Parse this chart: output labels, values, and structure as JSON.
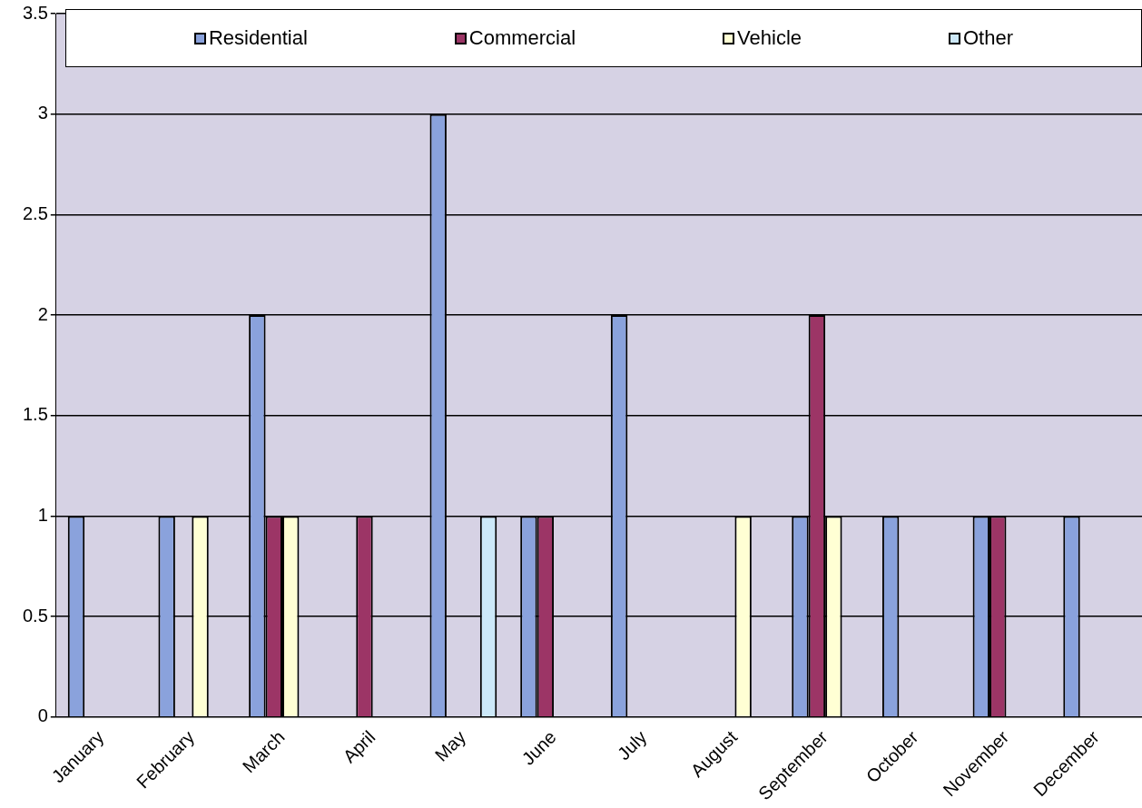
{
  "chart_data": {
    "type": "bar",
    "categories": [
      "January",
      "February",
      "March",
      "April",
      "May",
      "June",
      "July",
      "August",
      "September",
      "October",
      "November",
      "December"
    ],
    "series": [
      {
        "name": "Residential",
        "color": "#8aa2dc",
        "values": [
          1,
          1,
          2,
          0,
          3,
          1,
          2,
          0,
          1,
          1,
          1,
          1
        ]
      },
      {
        "name": "Commercial",
        "color": "#9c3566",
        "values": [
          0,
          0,
          1,
          1,
          0,
          1,
          0,
          0,
          2,
          0,
          1,
          0
        ]
      },
      {
        "name": "Vehicle",
        "color": "#ffffd4",
        "values": [
          0,
          1,
          1,
          0,
          0,
          0,
          0,
          1,
          1,
          0,
          0,
          0
        ]
      },
      {
        "name": "Other",
        "color": "#cce8f8",
        "values": [
          0,
          0,
          0,
          0,
          1,
          0,
          0,
          0,
          0,
          0,
          0,
          0
        ]
      }
    ],
    "ylim": [
      0,
      3.5
    ],
    "yticks": [
      0,
      0.5,
      1,
      1.5,
      2,
      2.5,
      3,
      3.5
    ],
    "grid": "y",
    "legend": "top"
  }
}
